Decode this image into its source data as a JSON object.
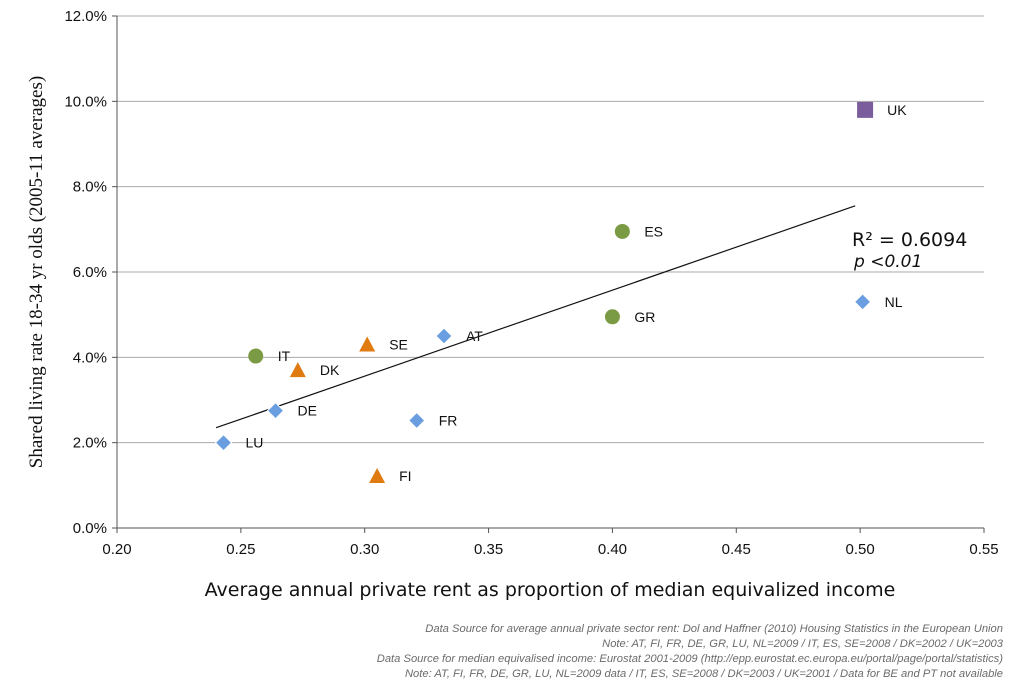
{
  "chart_data": {
    "type": "scatter",
    "xlabel": "Average annual private rent as proportion of median equivalized income",
    "ylabel": "Shared living rate 18-34 yr olds  (2005-11 averages)",
    "xlim": [
      0.2,
      0.55
    ],
    "ylim": [
      0.0,
      12.0
    ],
    "x_ticks": [
      "0.20",
      "0.25",
      "0.30",
      "0.35",
      "0.40",
      "0.45",
      "0.50",
      "0.55"
    ],
    "y_ticks": [
      "0.0%",
      "2.0%",
      "4.0%",
      "6.0%",
      "8.0%",
      "10.0%",
      "12.0%"
    ],
    "grid": "horizontal",
    "points": [
      {
        "label": "UK",
        "x": 0.502,
        "y": 9.8,
        "shape": "square",
        "color": "#7b5c9c"
      },
      {
        "label": "ES",
        "x": 0.404,
        "y": 6.95,
        "shape": "circle",
        "color": "#7a9a43"
      },
      {
        "label": "GR",
        "x": 0.4,
        "y": 4.95,
        "shape": "circle",
        "color": "#7a9a43"
      },
      {
        "label": "IT",
        "x": 0.256,
        "y": 4.03,
        "shape": "circle",
        "color": "#7a9a43"
      },
      {
        "label": "NL",
        "x": 0.501,
        "y": 5.3,
        "shape": "diamond",
        "color": "#6a9ee0"
      },
      {
        "label": "AT",
        "x": 0.332,
        "y": 4.5,
        "shape": "diamond",
        "color": "#6a9ee0"
      },
      {
        "label": "DE",
        "x": 0.264,
        "y": 2.75,
        "shape": "diamond",
        "color": "#6a9ee0"
      },
      {
        "label": "FR",
        "x": 0.321,
        "y": 2.52,
        "shape": "diamond",
        "color": "#6a9ee0"
      },
      {
        "label": "LU",
        "x": 0.243,
        "y": 2.0,
        "shape": "diamond",
        "color": "#6a9ee0"
      },
      {
        "label": "SE",
        "x": 0.301,
        "y": 4.3,
        "shape": "triangle",
        "color": "#e07b12"
      },
      {
        "label": "DK",
        "x": 0.273,
        "y": 3.7,
        "shape": "triangle",
        "color": "#e07b12"
      },
      {
        "label": "FI",
        "x": 0.305,
        "y": 1.22,
        "shape": "triangle",
        "color": "#e07b12"
      }
    ],
    "trendline": {
      "x": [
        0.24,
        0.498
      ],
      "y": [
        2.35,
        7.55
      ]
    },
    "annotation_r2": "R² = 0.6094",
    "annotation_p": "p <0.01"
  },
  "notes": [
    "Data Source for average annual private sector rent: Dol and Haffner (2010) Housing Statistics in the European Union",
    "Note: AT, FI, FR, DE, GR, LU, NL=2009 / IT, ES, SE=2008  / DK=2002  /  UK=2003",
    "Data Source for median equivalised income: Eurostat 2001-2009 (http://epp.eurostat.ec.europa.eu/portal/page/portal/statistics)",
    "Note: AT, FI, FR, DE, GR, LU, NL=2009 data / IT, ES, SE=2008  / DK=2003 / UK=2001 / Data for BE and PT not available"
  ]
}
